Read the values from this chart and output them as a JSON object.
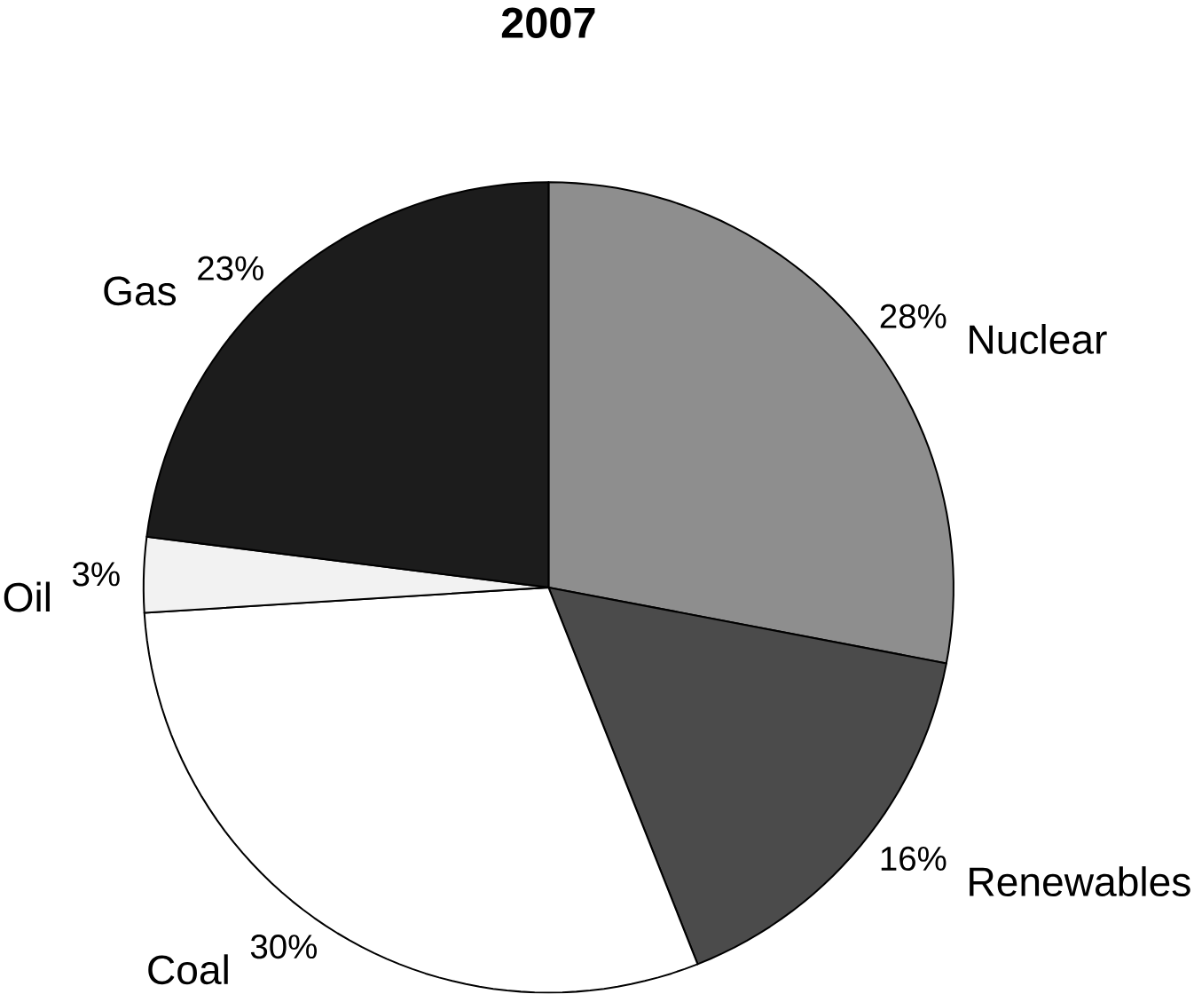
{
  "chart_data": {
    "type": "pie",
    "title": "2007",
    "categories": [
      "Nuclear",
      "Renewables",
      "Coal",
      "Oil",
      "Gas"
    ],
    "values": [
      28,
      16,
      30,
      3,
      23
    ],
    "colors": [
      "#8e8e8e",
      "#4b4b4b",
      "#ffffff",
      "#f2f2f2",
      "#1c1c1c"
    ],
    "value_labels": [
      "28%",
      "16%",
      "30%",
      "3%",
      "23%"
    ]
  }
}
